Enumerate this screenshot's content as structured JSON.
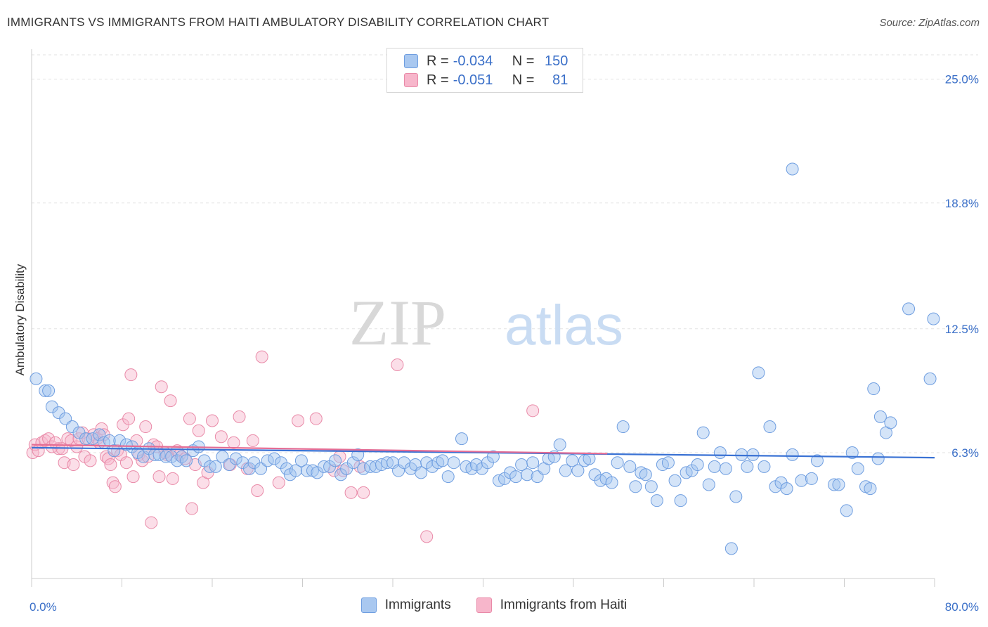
{
  "title": "IMMIGRANTS VS IMMIGRANTS FROM HAITI AMBULATORY DISABILITY CORRELATION CHART",
  "source": "Source: ZipAtlas.com",
  "watermark": {
    "part1": "ZIP",
    "part2": "atlas"
  },
  "legend": {
    "r_label": "R =",
    "n_label": "N =",
    "rows": [
      {
        "r": "-0.034",
        "n": "150",
        "color": "#a9c8f0",
        "border": "#6f9ee0"
      },
      {
        "r": "-0.051",
        "n": "81",
        "color": "#f7b6cb",
        "border": "#e98aa8"
      }
    ]
  },
  "chart_data": {
    "type": "scatter",
    "title": "IMMIGRANTS VS IMMIGRANTS FROM HAITI AMBULATORY DISABILITY CORRELATION CHART",
    "xlabel": "",
    "ylabel": "Ambulatory Disability",
    "xlim": [
      0,
      80
    ],
    "ylim": [
      0,
      26.5
    ],
    "x_tick_labels": [
      "0.0%",
      "80.0%"
    ],
    "y_ticks": [
      6.3,
      12.5,
      18.8,
      25.0
    ],
    "y_tick_labels": [
      "6.3%",
      "12.5%",
      "18.8%",
      "25.0%"
    ],
    "grid": true,
    "legend_position": "top-center",
    "series": [
      {
        "name": "Immigrants",
        "color": "#6f9ee0",
        "fill": "rgba(160,196,240,0.45)",
        "trend": {
          "x": [
            0,
            80
          ],
          "y": [
            6.55,
            6.05
          ],
          "color": "#3a72d4"
        },
        "points": [
          [
            0.4,
            10.0
          ],
          [
            1.2,
            9.4
          ],
          [
            1.5,
            9.4
          ],
          [
            1.8,
            8.6
          ],
          [
            2.4,
            8.3
          ],
          [
            3.0,
            8.0
          ],
          [
            3.6,
            7.6
          ],
          [
            4.2,
            7.3
          ],
          [
            4.8,
            7.0
          ],
          [
            5.4,
            7.0
          ],
          [
            6.0,
            7.2
          ],
          [
            6.4,
            6.8
          ],
          [
            6.9,
            6.9
          ],
          [
            7.3,
            6.4
          ],
          [
            7.8,
            6.9
          ],
          [
            8.4,
            6.7
          ],
          [
            8.9,
            6.6
          ],
          [
            9.4,
            6.3
          ],
          [
            9.9,
            6.1
          ],
          [
            10.4,
            6.5
          ],
          [
            10.9,
            6.2
          ],
          [
            11.3,
            6.2
          ],
          [
            11.9,
            6.1
          ],
          [
            12.4,
            6.1
          ],
          [
            12.9,
            5.9
          ],
          [
            13.3,
            6.1
          ],
          [
            13.7,
            5.9
          ],
          [
            14.3,
            6.4
          ],
          [
            14.8,
            6.6
          ],
          [
            15.3,
            5.9
          ],
          [
            15.8,
            5.6
          ],
          [
            16.3,
            5.6
          ],
          [
            16.9,
            6.1
          ],
          [
            17.5,
            5.7
          ],
          [
            18.1,
            6.0
          ],
          [
            18.7,
            5.8
          ],
          [
            19.3,
            5.5
          ],
          [
            19.7,
            5.8
          ],
          [
            20.3,
            5.5
          ],
          [
            20.9,
            5.9
          ],
          [
            21.5,
            6.0
          ],
          [
            22.1,
            5.8
          ],
          [
            22.6,
            5.5
          ],
          [
            22.9,
            5.2
          ],
          [
            23.4,
            5.4
          ],
          [
            23.9,
            5.9
          ],
          [
            24.4,
            5.4
          ],
          [
            24.9,
            5.4
          ],
          [
            25.3,
            5.3
          ],
          [
            25.9,
            5.6
          ],
          [
            26.4,
            5.6
          ],
          [
            26.9,
            5.9
          ],
          [
            27.4,
            5.2
          ],
          [
            27.9,
            5.5
          ],
          [
            28.5,
            5.8
          ],
          [
            28.9,
            6.2
          ],
          [
            29.4,
            5.5
          ],
          [
            30.0,
            5.6
          ],
          [
            30.5,
            5.6
          ],
          [
            31.0,
            5.7
          ],
          [
            31.5,
            5.8
          ],
          [
            32.0,
            5.8
          ],
          [
            32.5,
            5.4
          ],
          [
            33.0,
            5.8
          ],
          [
            33.6,
            5.5
          ],
          [
            34.0,
            5.7
          ],
          [
            34.5,
            5.3
          ],
          [
            35.0,
            5.8
          ],
          [
            35.5,
            5.6
          ],
          [
            36.0,
            5.8
          ],
          [
            36.4,
            5.9
          ],
          [
            36.9,
            5.1
          ],
          [
            37.4,
            5.8
          ],
          [
            38.1,
            7.0
          ],
          [
            38.5,
            5.6
          ],
          [
            39.0,
            5.5
          ],
          [
            39.4,
            5.7
          ],
          [
            39.9,
            5.5
          ],
          [
            40.4,
            5.8
          ],
          [
            40.9,
            6.1
          ],
          [
            41.4,
            4.9
          ],
          [
            41.9,
            5.0
          ],
          [
            42.4,
            5.3
          ],
          [
            42.9,
            5.1
          ],
          [
            43.4,
            5.7
          ],
          [
            43.9,
            5.2
          ],
          [
            44.4,
            5.8
          ],
          [
            44.8,
            5.1
          ],
          [
            45.4,
            5.5
          ],
          [
            45.8,
            6.0
          ],
          [
            46.3,
            6.1
          ],
          [
            46.8,
            6.7
          ],
          [
            47.3,
            5.4
          ],
          [
            47.9,
            5.9
          ],
          [
            48.4,
            5.4
          ],
          [
            49.0,
            5.9
          ],
          [
            49.4,
            6.0
          ],
          [
            49.9,
            5.2
          ],
          [
            50.4,
            4.9
          ],
          [
            50.9,
            5.0
          ],
          [
            51.4,
            4.8
          ],
          [
            51.9,
            5.8
          ],
          [
            52.4,
            7.6
          ],
          [
            53.0,
            5.6
          ],
          [
            53.5,
            4.6
          ],
          [
            54.0,
            5.3
          ],
          [
            54.4,
            5.2
          ],
          [
            54.9,
            4.6
          ],
          [
            55.4,
            3.9
          ],
          [
            55.9,
            5.7
          ],
          [
            56.4,
            5.8
          ],
          [
            57.0,
            4.9
          ],
          [
            57.5,
            3.9
          ],
          [
            58.0,
            5.3
          ],
          [
            58.5,
            5.4
          ],
          [
            59.0,
            5.7
          ],
          [
            59.5,
            7.3
          ],
          [
            60.0,
            4.7
          ],
          [
            60.5,
            5.6
          ],
          [
            61.0,
            6.3
          ],
          [
            61.5,
            5.5
          ],
          [
            62.0,
            1.5
          ],
          [
            62.4,
            4.1
          ],
          [
            62.9,
            6.2
          ],
          [
            63.4,
            5.6
          ],
          [
            63.9,
            6.2
          ],
          [
            64.4,
            10.3
          ],
          [
            64.9,
            5.6
          ],
          [
            65.4,
            7.6
          ],
          [
            65.9,
            4.6
          ],
          [
            66.4,
            4.8
          ],
          [
            66.9,
            4.5
          ],
          [
            67.4,
            6.2
          ],
          [
            68.2,
            4.9
          ],
          [
            69.1,
            5.0
          ],
          [
            69.6,
            5.9
          ],
          [
            71.1,
            4.7
          ],
          [
            71.5,
            4.7
          ],
          [
            72.2,
            3.4
          ],
          [
            72.7,
            6.3
          ],
          [
            73.2,
            5.5
          ],
          [
            73.9,
            4.6
          ],
          [
            74.3,
            4.5
          ],
          [
            74.6,
            9.5
          ],
          [
            75.0,
            6.0
          ],
          [
            75.2,
            8.1
          ],
          [
            75.7,
            7.3
          ],
          [
            76.1,
            7.8
          ],
          [
            77.7,
            13.5
          ],
          [
            79.9,
            13.0
          ],
          [
            79.6,
            10.0
          ],
          [
            67.4,
            20.5
          ]
        ]
      },
      {
        "name": "Immigrants from Haiti",
        "color": "#e98aa8",
        "fill": "rgba(247,182,203,0.45)",
        "trend": {
          "x": [
            0,
            51
          ],
          "y": [
            6.7,
            6.25
          ],
          "color": "#e46d95"
        },
        "points": [
          [
            0.1,
            6.3
          ],
          [
            0.3,
            6.7
          ],
          [
            0.6,
            6.4
          ],
          [
            0.9,
            6.8
          ],
          [
            1.2,
            6.9
          ],
          [
            1.5,
            7.0
          ],
          [
            1.8,
            6.6
          ],
          [
            2.1,
            6.8
          ],
          [
            2.4,
            6.5
          ],
          [
            2.7,
            6.5
          ],
          [
            2.9,
            5.8
          ],
          [
            3.2,
            7.0
          ],
          [
            3.5,
            6.9
          ],
          [
            3.7,
            5.7
          ],
          [
            4.0,
            6.6
          ],
          [
            4.2,
            7.0
          ],
          [
            4.5,
            7.3
          ],
          [
            4.7,
            6.1
          ],
          [
            5.0,
            7.0
          ],
          [
            5.2,
            5.9
          ],
          [
            5.5,
            7.2
          ],
          [
            5.8,
            7.0
          ],
          [
            6.0,
            6.8
          ],
          [
            6.2,
            7.5
          ],
          [
            6.4,
            7.2
          ],
          [
            6.6,
            6.1
          ],
          [
            6.8,
            6.0
          ],
          [
            7.0,
            5.7
          ],
          [
            7.2,
            4.8
          ],
          [
            7.4,
            4.6
          ],
          [
            7.6,
            6.4
          ],
          [
            7.9,
            6.2
          ],
          [
            8.1,
            7.7
          ],
          [
            8.4,
            5.8
          ],
          [
            8.6,
            8.0
          ],
          [
            8.8,
            10.2
          ],
          [
            9.0,
            5.1
          ],
          [
            9.3,
            6.9
          ],
          [
            9.5,
            6.2
          ],
          [
            9.8,
            5.9
          ],
          [
            10.1,
            7.6
          ],
          [
            10.3,
            6.1
          ],
          [
            10.6,
            2.8
          ],
          [
            10.8,
            6.7
          ],
          [
            11.1,
            6.6
          ],
          [
            11.3,
            5.1
          ],
          [
            11.5,
            9.6
          ],
          [
            11.8,
            6.3
          ],
          [
            12.0,
            6.2
          ],
          [
            12.3,
            8.9
          ],
          [
            12.5,
            5.0
          ],
          [
            12.9,
            6.4
          ],
          [
            13.1,
            6.2
          ],
          [
            13.6,
            6.0
          ],
          [
            14.0,
            8.0
          ],
          [
            14.2,
            3.5
          ],
          [
            14.5,
            5.7
          ],
          [
            14.8,
            7.4
          ],
          [
            15.2,
            4.8
          ],
          [
            15.6,
            5.3
          ],
          [
            16.0,
            7.9
          ],
          [
            16.8,
            7.1
          ],
          [
            17.6,
            5.7
          ],
          [
            17.9,
            6.8
          ],
          [
            18.4,
            8.1
          ],
          [
            19.1,
            5.5
          ],
          [
            19.6,
            6.9
          ],
          [
            20.0,
            4.4
          ],
          [
            20.4,
            11.1
          ],
          [
            21.9,
            4.8
          ],
          [
            23.6,
            7.9
          ],
          [
            25.2,
            8.0
          ],
          [
            26.8,
            5.4
          ],
          [
            27.3,
            6.1
          ],
          [
            27.6,
            5.4
          ],
          [
            28.3,
            4.3
          ],
          [
            29.4,
            4.3
          ],
          [
            32.4,
            10.7
          ],
          [
            35.0,
            2.1
          ],
          [
            44.4,
            8.4
          ],
          [
            29.1,
            5.6
          ]
        ]
      }
    ]
  },
  "bottom_legend": [
    {
      "label": "Immigrants",
      "color": "#a9c8f0",
      "border": "#6f9ee0"
    },
    {
      "label": "Immigrants from Haiti",
      "color": "#f7b6cb",
      "border": "#e98aa8"
    }
  ]
}
